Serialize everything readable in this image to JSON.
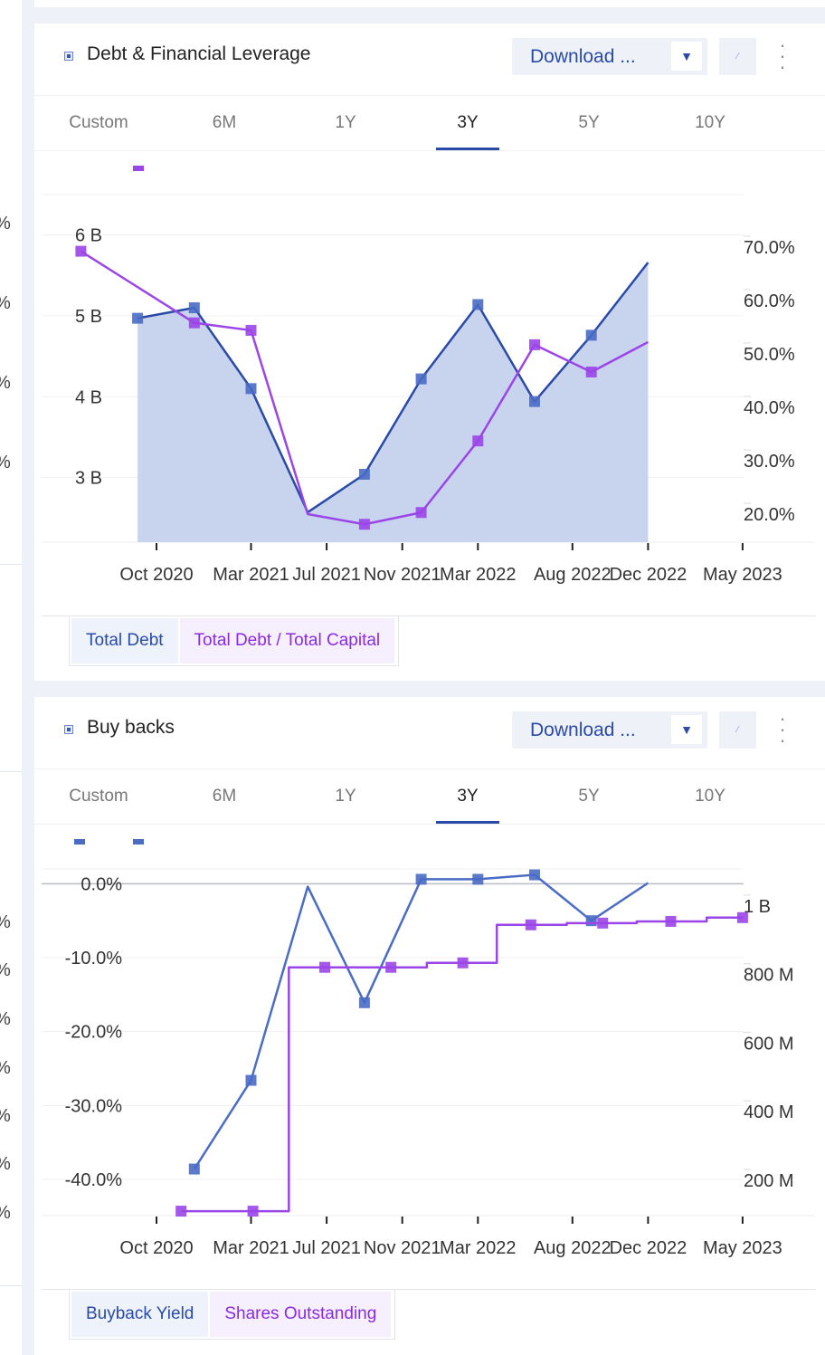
{
  "left_column": {
    "labels": [
      "%",
      "%",
      "%",
      "%",
      "%",
      "%",
      "%",
      "%",
      "%",
      "%",
      "%"
    ]
  },
  "cards": [
    {
      "title": "Debt & Financial Leverage",
      "download_label": "Download ...",
      "tabs": [
        "Custom",
        "6M",
        "1Y",
        "3Y",
        "5Y",
        "10Y"
      ],
      "active_tab": "3Y",
      "legend": [
        "Total Debt",
        "Total Debt / Total Capital"
      ]
    },
    {
      "title": "Buy backs",
      "download_label": "Download ...",
      "tabs": [
        "Custom",
        "6M",
        "1Y",
        "3Y",
        "5Y",
        "10Y"
      ],
      "active_tab": "3Y",
      "legend": [
        "Buyback Yield",
        "Shares Outstanding"
      ]
    }
  ],
  "colors": {
    "blue": "#2a4aa8",
    "blue_marker": "#4a6cc4",
    "purple": "#9b45e8",
    "area": "#c5d2ec"
  },
  "chart_data": [
    {
      "type": "line",
      "title": "Debt & Financial Leverage",
      "x_unit": "months since Oct 2020",
      "xticks": [
        {
          "m": 0,
          "label": "Oct 2020"
        },
        {
          "m": 5,
          "label": "Mar 2021"
        },
        {
          "m": 9,
          "label": "Jul 2021"
        },
        {
          "m": 13,
          "label": "Nov 2021"
        },
        {
          "m": 17,
          "label": "Mar 2022"
        },
        {
          "m": 22,
          "label": "Aug 2022"
        },
        {
          "m": 26,
          "label": "Dec 2022"
        },
        {
          "m": 31,
          "label": "May 2023"
        }
      ],
      "yleft": {
        "ticks": [
          {
            "v": 6,
            "label": "6 B"
          },
          {
            "v": 5,
            "label": "5 B"
          },
          {
            "v": 4,
            "label": "4 B"
          },
          {
            "v": 3,
            "label": "3 B"
          }
        ],
        "range": [
          2.2,
          6.5
        ],
        "unit": "B"
      },
      "yright": {
        "ticks": [
          {
            "v": 70,
            "label": "70.0%"
          },
          {
            "v": 60,
            "label": "60.0%"
          },
          {
            "v": 50,
            "label": "50.0%"
          },
          {
            "v": 40,
            "label": "40.0%"
          },
          {
            "v": 30,
            "label": "30.0%"
          },
          {
            "v": 20,
            "label": "20.0%"
          }
        ],
        "range": [
          14.75,
          79.8
        ],
        "unit": "%"
      },
      "series": [
        {
          "name": "Total Debt",
          "axis": "left",
          "style": "area",
          "x": [
            -1,
            2,
            5,
            8,
            11,
            14,
            17,
            20,
            23,
            26
          ],
          "values": [
            4.97,
            5.1,
            4.1,
            2.57,
            3.04,
            4.22,
            5.14,
            3.94,
            4.76,
            5.66
          ],
          "markers": [
            true,
            true,
            true,
            false,
            true,
            true,
            true,
            true,
            true,
            false
          ]
        },
        {
          "name": "Total Debt / Total Capital",
          "axis": "right",
          "style": "line",
          "x": [
            -4,
            2,
            5,
            8,
            11,
            14,
            17,
            20,
            23,
            26
          ],
          "values": [
            69.2,
            55.8,
            54.4,
            20.0,
            18.1,
            20.3,
            33.7,
            51.7,
            46.6,
            52.2
          ],
          "markers": [
            true,
            true,
            true,
            false,
            true,
            true,
            true,
            true,
            true,
            false
          ]
        }
      ]
    },
    {
      "type": "line",
      "title": "Buy backs",
      "x_unit": "months since Oct 2020",
      "xticks": [
        {
          "m": 0,
          "label": "Oct 2020"
        },
        {
          "m": 5,
          "label": "Mar 2021"
        },
        {
          "m": 9,
          "label": "Jul 2021"
        },
        {
          "m": 13,
          "label": "Nov 2021"
        },
        {
          "m": 17,
          "label": "Mar 2022"
        },
        {
          "m": 22,
          "label": "Aug 2022"
        },
        {
          "m": 26,
          "label": "Dec 2022"
        },
        {
          "m": 31,
          "label": "May 2023"
        }
      ],
      "yleft": {
        "ticks": [
          {
            "v": 0,
            "label": "0.0%"
          },
          {
            "v": -10,
            "label": "-10.0%"
          },
          {
            "v": -20,
            "label": "-20.0%"
          },
          {
            "v": -30,
            "label": "-30.0%"
          },
          {
            "v": -40,
            "label": "-40.0%"
          }
        ],
        "range": [
          -44.9,
          2
        ],
        "unit": "%"
      },
      "yright": {
        "ticks": [
          {
            "v": 1000,
            "label": "1 B"
          },
          {
            "v": 800,
            "label": "800 M"
          },
          {
            "v": 600,
            "label": "600 M"
          },
          {
            "v": 400,
            "label": "400 M"
          },
          {
            "v": 200,
            "label": "200 M"
          }
        ],
        "range": [
          97,
          1108
        ],
        "unit": "M"
      },
      "series": [
        {
          "name": "Buyback Yield",
          "axis": "left",
          "style": "line",
          "x": [
            2,
            5,
            8,
            11,
            14,
            17,
            20,
            23,
            26
          ],
          "values": [
            -38.6,
            -26.6,
            -0.4,
            -16.1,
            0.6,
            0.6,
            1.2,
            -5.0,
            0.1
          ],
          "markers": [
            true,
            true,
            false,
            true,
            true,
            true,
            true,
            true,
            false
          ]
        },
        {
          "name": "Shares Outstanding",
          "axis": "right",
          "style": "step",
          "x": [
            1.3,
            5.1,
            8.9,
            12.4,
            16.2,
            19.8,
            23.6,
            27.2,
            31
          ],
          "values": [
            110,
            110,
            821,
            821,
            834,
            945,
            950,
            955,
            966
          ],
          "markers": [
            true,
            true,
            true,
            true,
            true,
            true,
            true,
            true,
            true
          ]
        }
      ]
    }
  ]
}
